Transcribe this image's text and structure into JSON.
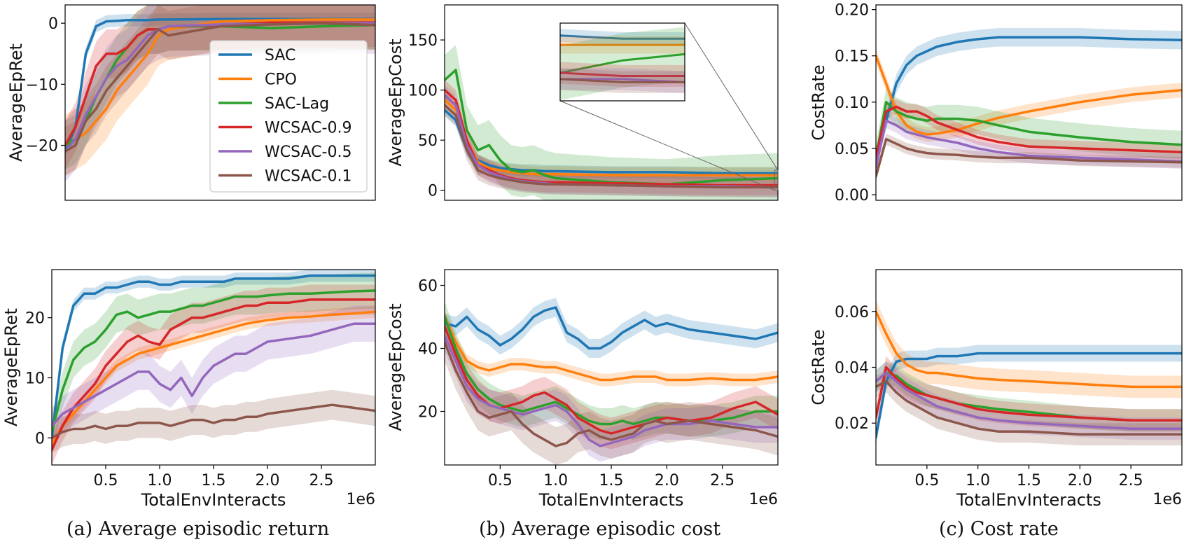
{
  "colors": {
    "SAC": "#1f77b4",
    "CPO": "#ff7f0e",
    "SAC-Lag": "#2ca02c",
    "WCSAC-0.9": "#d62728",
    "WCSAC-0.5": "#9467bd",
    "WCSAC-0.1": "#8c564b"
  },
  "legend": {
    "placement": "right",
    "entries": [
      "SAC",
      "CPO",
      "SAC-Lag",
      "WCSAC-0.9",
      "WCSAC-0.5",
      "WCSAC-0.1"
    ]
  },
  "captions": {
    "a": "(a)  Average episodic return",
    "b": "(b)  Average episodic cost",
    "c": "(c)  Cost rate"
  },
  "chart_data": [
    {
      "id": "ret_top",
      "type": "line",
      "ylabel": "AverageEpRet",
      "xlabel": "",
      "xscale_label": "",
      "xlim": [
        0,
        3.0
      ],
      "ylim": [
        -29,
        3
      ],
      "yticks": [
        0,
        -10,
        -20
      ],
      "xticks": [],
      "legend": true,
      "x": [
        0,
        0.1,
        0.2,
        0.3,
        0.4,
        0.5,
        0.6,
        0.7,
        0.8,
        0.9,
        1.0,
        1.5,
        2.0,
        2.5,
        3.0
      ],
      "series": [
        {
          "name": "SAC",
          "values": [
            -21,
            -17,
            -5,
            -0.5,
            0.3,
            0.4,
            0.5,
            0.5,
            0.5,
            0.6,
            0.6,
            0.7,
            0.7,
            0.7,
            0.7
          ],
          "band": 1
        },
        {
          "name": "CPO",
          "values": [
            -20,
            -19,
            -18,
            -16,
            -14,
            -11,
            -9,
            -7,
            -5,
            -2,
            -1,
            0.3,
            0.5,
            0.6,
            0.6
          ],
          "band": 5
        },
        {
          "name": "SAC-Lag",
          "values": [
            -20,
            -19,
            -16,
            -12,
            -9,
            -6,
            -4,
            -2,
            -1,
            -1,
            -0.5,
            -0.5,
            -0.8,
            -0.5,
            -0.3
          ],
          "band": 4
        },
        {
          "name": "WCSAC-0.9",
          "values": [
            -20,
            -17,
            -12,
            -7,
            -5,
            -5,
            -4,
            -2,
            -1,
            -1,
            -0.5,
            -0.3,
            0.1,
            0.1,
            0.1
          ],
          "band": 4
        },
        {
          "name": "WCSAC-0.5",
          "values": [
            -21,
            -19,
            -15,
            -12,
            -9,
            -7,
            -6,
            -4,
            -2,
            -1,
            -0.5,
            -0.2,
            -0.2,
            0.0,
            0.0
          ],
          "band": 5
        },
        {
          "name": "WCSAC-0.1",
          "values": [
            -21,
            -20,
            -16,
            -14,
            -11,
            -9,
            -7,
            -5,
            -3,
            -1,
            -2,
            -0.5,
            -0.2,
            0.0,
            -0.3
          ],
          "band": 4
        }
      ]
    },
    {
      "id": "cost_top",
      "type": "line",
      "ylabel": "AverageEpCost",
      "xlabel": "",
      "xscale_label": "",
      "xlim": [
        0,
        3.0
      ],
      "ylim": [
        -10,
        185
      ],
      "yticks": [
        150,
        100,
        50,
        0
      ],
      "xticks": [],
      "inset": true,
      "x": [
        0,
        0.1,
        0.2,
        0.3,
        0.4,
        0.5,
        0.6,
        0.7,
        0.8,
        0.9,
        1.0,
        1.5,
        2.0,
        2.5,
        3.0
      ],
      "series": [
        {
          "name": "SAC",
          "values": [
            80,
            70,
            40,
            30,
            25,
            22,
            21,
            20,
            20,
            19,
            19,
            18,
            18,
            17,
            17
          ],
          "band": 6
        },
        {
          "name": "CPO",
          "values": [
            90,
            80,
            50,
            28,
            22,
            20,
            18,
            17,
            16,
            16,
            16,
            15,
            15,
            15,
            15
          ],
          "band": 8
        },
        {
          "name": "SAC-Lag",
          "values": [
            110,
            120,
            60,
            40,
            45,
            30,
            20,
            18,
            20,
            15,
            12,
            8,
            6,
            10,
            12
          ],
          "band": 25
        },
        {
          "name": "WCSAC-0.9",
          "values": [
            100,
            90,
            50,
            25,
            20,
            15,
            12,
            10,
            9,
            8,
            8,
            7,
            6,
            5,
            5
          ],
          "band": 10
        },
        {
          "name": "WCSAC-0.5",
          "values": [
            95,
            85,
            45,
            25,
            18,
            14,
            11,
            9,
            8,
            7,
            6,
            5,
            4,
            4,
            3
          ],
          "band": 10
        },
        {
          "name": "WCSAC-0.1",
          "values": [
            85,
            75,
            40,
            20,
            15,
            12,
            10,
            8,
            7,
            6,
            6,
            5,
            4,
            3,
            3
          ],
          "band": 10
        }
      ]
    },
    {
      "id": "rate_top",
      "type": "line",
      "ylabel": "CostRate",
      "xlabel": "",
      "xscale_label": "",
      "xlim": [
        0,
        3.0
      ],
      "ylim": [
        -0.006,
        0.205
      ],
      "yticks": [
        0.2,
        0.15,
        0.1,
        0.05,
        0.0
      ],
      "ytick_labels": [
        "0.20",
        "0.15",
        "0.10",
        "0.05",
        "0.00"
      ],
      "xticks": [],
      "x": [
        0,
        0.1,
        0.2,
        0.3,
        0.4,
        0.5,
        0.6,
        0.8,
        1.0,
        1.2,
        1.5,
        2.0,
        2.5,
        3.0
      ],
      "series": [
        {
          "name": "SAC",
          "values": [
            0.04,
            0.08,
            0.12,
            0.14,
            0.15,
            0.155,
            0.16,
            0.165,
            0.168,
            0.17,
            0.17,
            0.17,
            0.168,
            0.167
          ],
          "band": 0.01
        },
        {
          "name": "CPO",
          "values": [
            0.15,
            0.12,
            0.09,
            0.075,
            0.068,
            0.065,
            0.066,
            0.07,
            0.077,
            0.083,
            0.09,
            0.1,
            0.108,
            0.113
          ],
          "band": 0.008
        },
        {
          "name": "SAC-Lag",
          "values": [
            0.04,
            0.1,
            0.09,
            0.085,
            0.082,
            0.08,
            0.082,
            0.082,
            0.08,
            0.075,
            0.068,
            0.062,
            0.057,
            0.054
          ],
          "band": 0.015
        },
        {
          "name": "WCSAC-0.9",
          "values": [
            0.04,
            0.09,
            0.095,
            0.09,
            0.09,
            0.085,
            0.078,
            0.07,
            0.062,
            0.057,
            0.052,
            0.05,
            0.048,
            0.046
          ],
          "band": 0.008
        },
        {
          "name": "WCSAC-0.5",
          "values": [
            0.03,
            0.08,
            0.075,
            0.068,
            0.065,
            0.062,
            0.06,
            0.056,
            0.05,
            0.046,
            0.042,
            0.04,
            0.038,
            0.036
          ],
          "band": 0.008
        },
        {
          "name": "WCSAC-0.1",
          "values": [
            0.02,
            0.06,
            0.055,
            0.05,
            0.047,
            0.045,
            0.044,
            0.043,
            0.041,
            0.04,
            0.04,
            0.037,
            0.036,
            0.035
          ],
          "band": 0.006
        }
      ]
    },
    {
      "id": "ret_bot",
      "type": "line",
      "ylabel": "AverageEpRet",
      "xlabel": "TotalEnvInteracts",
      "xscale_label": "1e6",
      "xlim": [
        0,
        3.0
      ],
      "ylim": [
        -4.5,
        28
      ],
      "yticks": [
        20,
        10,
        0
      ],
      "xticks": [
        0.5,
        1.0,
        1.5,
        2.0,
        2.5
      ],
      "xtick_labels": [
        "0.5",
        "1.0",
        "1.5",
        "2.0",
        "2.5"
      ],
      "x": [
        0,
        0.1,
        0.2,
        0.3,
        0.4,
        0.5,
        0.6,
        0.7,
        0.8,
        0.9,
        1.0,
        1.1,
        1.2,
        1.3,
        1.4,
        1.5,
        1.6,
        1.7,
        1.8,
        1.9,
        2.0,
        2.2,
        2.4,
        2.6,
        2.8,
        3.0
      ],
      "series": [
        {
          "name": "SAC",
          "values": [
            0,
            15,
            22,
            24,
            24,
            25,
            25,
            25.5,
            26,
            26,
            25.5,
            25.5,
            26,
            26,
            26,
            26,
            26,
            26.5,
            26.5,
            26.5,
            26.5,
            26.5,
            27,
            27,
            27,
            27
          ],
          "band": 1
        },
        {
          "name": "CPO",
          "values": [
            -1,
            2,
            4,
            6,
            8,
            10,
            12,
            13,
            14,
            14.5,
            15,
            15.5,
            16,
            16.5,
            17,
            17.5,
            18,
            18.5,
            19,
            19.3,
            19.6,
            20,
            20.2,
            20.5,
            20.7,
            21
          ],
          "band": 1
        },
        {
          "name": "SAC-Lag",
          "values": [
            1,
            8,
            13,
            15,
            16,
            18,
            20.5,
            21,
            20,
            20.5,
            21,
            21,
            21.5,
            22,
            22,
            22.5,
            23,
            23.5,
            23.5,
            23.5,
            23.7,
            24,
            24,
            24.2,
            24.4,
            24.5
          ],
          "band": 3
        },
        {
          "name": "WCSAC-0.9",
          "values": [
            -2,
            2,
            5,
            7,
            9,
            12,
            14,
            16,
            17,
            16,
            15.5,
            18,
            19,
            20,
            20,
            20.5,
            21,
            21.5,
            22,
            22,
            22.5,
            22.5,
            23,
            23,
            23,
            23
          ],
          "band": 2.5
        },
        {
          "name": "WCSAC-0.5",
          "values": [
            2,
            4,
            5,
            6,
            7,
            8,
            9,
            10,
            11,
            11,
            9,
            8,
            10,
            7,
            10,
            12,
            13,
            14,
            14,
            15,
            16,
            16.5,
            17,
            18,
            19,
            19
          ],
          "band": 3
        },
        {
          "name": "WCSAC-0.1",
          "values": [
            0,
            1,
            1.5,
            1.5,
            2,
            1.5,
            2,
            2,
            2.5,
            2.5,
            2.5,
            2,
            2.5,
            3,
            3,
            2.5,
            3,
            3,
            3.5,
            3.5,
            4,
            4.5,
            5,
            5.5,
            5,
            4.5
          ],
          "band": 2.5
        }
      ]
    },
    {
      "id": "cost_bot",
      "type": "line",
      "ylabel": "AverageEpCost",
      "xlabel": "TotalEnvInteracts",
      "xscale_label": "1e6",
      "xlim": [
        0,
        3.0
      ],
      "ylim": [
        3,
        65
      ],
      "yticks": [
        60,
        40,
        20
      ],
      "xticks": [
        0.5,
        1.0,
        1.5,
        2.0,
        2.5
      ],
      "xtick_labels": [
        "0.5",
        "1.0",
        "1.5",
        "2.0",
        "2.5"
      ],
      "x": [
        0,
        0.1,
        0.2,
        0.3,
        0.4,
        0.5,
        0.6,
        0.7,
        0.8,
        0.9,
        1.0,
        1.1,
        1.2,
        1.3,
        1.4,
        1.5,
        1.6,
        1.7,
        1.8,
        1.9,
        2.0,
        2.2,
        2.4,
        2.6,
        2.8,
        3.0
      ],
      "series": [
        {
          "name": "SAC",
          "values": [
            48,
            47,
            50,
            46,
            44,
            41,
            43,
            46,
            50,
            52,
            53,
            45,
            43,
            40,
            40,
            42,
            45,
            47,
            49,
            47,
            48,
            46,
            45,
            44,
            43,
            45
          ],
          "band": 3
        },
        {
          "name": "CPO",
          "values": [
            50,
            42,
            36,
            34,
            33,
            34,
            35,
            35,
            34.5,
            34,
            34,
            33,
            32,
            31,
            30,
            30,
            30.5,
            31,
            31,
            31,
            30,
            30,
            30.5,
            30,
            30,
            31
          ],
          "band": 2
        },
        {
          "name": "SAC-Lag",
          "values": [
            50,
            40,
            32,
            27,
            24,
            22,
            21,
            20,
            21,
            22,
            23,
            21,
            19,
            17,
            16,
            16,
            17,
            16,
            17,
            18,
            18,
            17,
            17,
            18,
            20,
            20
          ],
          "band": 5
        },
        {
          "name": "WCSAC-0.9",
          "values": [
            47,
            38,
            30,
            25,
            22,
            21,
            22,
            23,
            25,
            26,
            24,
            22,
            18,
            16,
            14,
            13,
            14,
            15,
            16,
            17,
            18,
            17,
            18,
            21,
            23,
            19
          ],
          "band": 5
        },
        {
          "name": "WCSAC-0.5",
          "values": [
            44,
            36,
            28,
            24,
            22,
            21,
            20,
            19,
            20,
            21,
            22,
            20,
            16,
            11,
            9,
            10,
            11,
            12,
            14,
            15,
            16,
            16,
            17,
            16,
            15,
            15
          ],
          "band": 5
        },
        {
          "name": "WCSAC-0.1",
          "values": [
            42,
            33,
            26,
            20,
            18,
            19,
            20,
            16,
            13,
            11,
            9,
            10,
            13,
            14,
            12,
            11,
            12,
            13,
            16,
            17,
            16,
            17,
            16,
            15,
            14,
            12
          ],
          "band": 6
        }
      ]
    },
    {
      "id": "rate_bot",
      "type": "line",
      "ylabel": "CostRate",
      "xlabel": "TotalEnvInteracts",
      "xscale_label": "1e6",
      "xlim": [
        0,
        3.0
      ],
      "ylim": [
        0.005,
        0.075
      ],
      "yticks": [
        0.06,
        0.04,
        0.02
      ],
      "ytick_labels": [
        "0.06",
        "0.04",
        "0.02"
      ],
      "xticks": [
        0.5,
        1.0,
        1.5,
        2.0,
        2.5
      ],
      "xtick_labels": [
        "0.5",
        "1.0",
        "1.5",
        "2.0",
        "2.5"
      ],
      "x": [
        0,
        0.1,
        0.2,
        0.3,
        0.4,
        0.5,
        0.6,
        0.8,
        1.0,
        1.2,
        1.5,
        2.0,
        2.5,
        3.0
      ],
      "series": [
        {
          "name": "SAC",
          "values": [
            0.015,
            0.035,
            0.042,
            0.043,
            0.043,
            0.043,
            0.044,
            0.044,
            0.045,
            0.045,
            0.045,
            0.045,
            0.045,
            0.045
          ],
          "band": 0.003
        },
        {
          "name": "CPO",
          "values": [
            0.06,
            0.052,
            0.045,
            0.041,
            0.039,
            0.038,
            0.038,
            0.037,
            0.036,
            0.0355,
            0.035,
            0.034,
            0.033,
            0.033
          ],
          "band": 0.004
        },
        {
          "name": "SAC-Lag",
          "values": [
            0.035,
            0.038,
            0.037,
            0.034,
            0.032,
            0.03,
            0.029,
            0.027,
            0.026,
            0.025,
            0.024,
            0.022,
            0.021,
            0.021
          ],
          "band": 0.004
        },
        {
          "name": "WCSAC-0.9",
          "values": [
            0.022,
            0.04,
            0.036,
            0.033,
            0.031,
            0.03,
            0.029,
            0.027,
            0.025,
            0.024,
            0.023,
            0.022,
            0.021,
            0.021
          ],
          "band": 0.004
        },
        {
          "name": "WCSAC-0.5",
          "values": [
            0.035,
            0.038,
            0.035,
            0.032,
            0.03,
            0.028,
            0.026,
            0.024,
            0.022,
            0.021,
            0.02,
            0.019,
            0.018,
            0.018
          ],
          "band": 0.004
        },
        {
          "name": "WCSAC-0.1",
          "values": [
            0.033,
            0.035,
            0.031,
            0.028,
            0.026,
            0.024,
            0.022,
            0.02,
            0.018,
            0.017,
            0.017,
            0.016,
            0.016,
            0.016
          ],
          "band": 0.004
        }
      ]
    }
  ]
}
